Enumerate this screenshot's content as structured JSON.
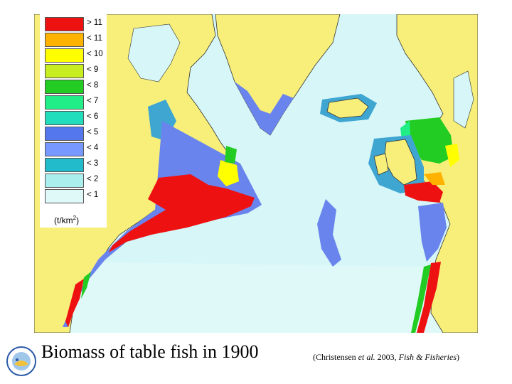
{
  "legend": {
    "items": [
      {
        "label": "> 11",
        "color": "#ee1111"
      },
      {
        "label": "< 11",
        "color": "#ffb300"
      },
      {
        "label": "< 10",
        "color": "#ffff00"
      },
      {
        "label": "< 9",
        "color": "#c8ee22"
      },
      {
        "label": "< 8",
        "color": "#22cc22"
      },
      {
        "label": "< 7",
        "color": "#22ee88"
      },
      {
        "label": "< 6",
        "color": "#22ddbb"
      },
      {
        "label": "< 5",
        "color": "#5577ee"
      },
      {
        "label": "< 4",
        "color": "#7799ff"
      },
      {
        "label": "< 3",
        "color": "#22bbcc"
      },
      {
        "label": "< 2",
        "color": "#aaeeee"
      },
      {
        "label": "< 1",
        "color": "#dff8f8"
      }
    ],
    "unit_prefix": "(t/km",
    "unit_exp": "2",
    "unit_suffix": ")"
  },
  "caption": "Biomass of table fish in 1900",
  "citation": {
    "prefix": "(Christensen ",
    "etal": "et al.",
    "mid": " 2003, ",
    "journal": "Fish & Fisheries",
    "suffix": ")"
  },
  "colors": {
    "land": "#f7ef7a",
    "ocean": "#d6f6f8",
    "ice_white": "#ffffff",
    "coastline": "#333333"
  }
}
